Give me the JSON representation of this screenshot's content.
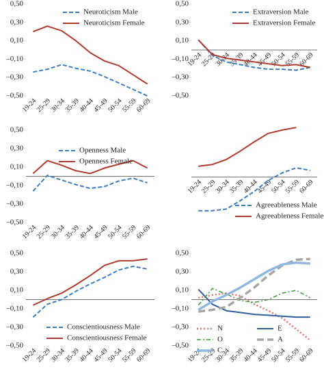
{
  "chart_data": [
    {
      "type": "line",
      "categories": [
        "19-24",
        "25-29",
        "30-34",
        "35-39",
        "40-44",
        "45-49",
        "50-54",
        "55-59",
        "60-69"
      ],
      "ylim": [
        -0.5,
        0.5
      ],
      "yticks": [
        {
          "value": -0.5,
          "label": "–0,50"
        },
        {
          "value": -0.3,
          "label": "–0,30"
        },
        {
          "value": -0.1,
          "label": "–0,10"
        },
        {
          "value": 0.1,
          "label": "0,10"
        },
        {
          "value": 0.3,
          "label": "0,30"
        },
        {
          "value": 0.5,
          "label": "0,50"
        }
      ],
      "zero_line": false,
      "legend": "top",
      "series": [
        {
          "name": "Neuroticism Male",
          "color": "#3a7dc0",
          "style": "dashed",
          "values": [
            -0.24,
            -0.21,
            -0.16,
            -0.2,
            -0.23,
            -0.29,
            -0.36,
            -0.43,
            -0.5
          ]
        },
        {
          "name": "Neuroticism Female",
          "color": "#b03a2e",
          "style": "solid",
          "values": [
            0.2,
            0.26,
            0.21,
            0.1,
            -0.03,
            -0.12,
            -0.17,
            -0.27,
            -0.37
          ]
        }
      ]
    },
    {
      "type": "line",
      "categories": [
        "19-24",
        "25-29",
        "30-34",
        "35-39",
        "40-44",
        "45-49",
        "50-54",
        "55-59",
        "60-69"
      ],
      "ylim": [
        -0.5,
        0.5
      ],
      "yticks": [
        {
          "value": -0.5,
          "label": "–0,50"
        },
        {
          "value": -0.3,
          "label": "–0,30"
        },
        {
          "value": -0.1,
          "label": "–0,10"
        },
        {
          "value": 0.1,
          "label": "0,10"
        },
        {
          "value": 0.3,
          "label": "0,30"
        },
        {
          "value": 0.5,
          "label": "0,50"
        }
      ],
      "zero_line": true,
      "legend": "top",
      "series": [
        {
          "name": "Extraversion Male",
          "color": "#3a7dc0",
          "style": "dashed",
          "values": [
            0.11,
            -0.06,
            -0.13,
            -0.16,
            -0.19,
            -0.21,
            -0.21,
            -0.22,
            -0.19
          ]
        },
        {
          "name": "Extraversion Female",
          "color": "#b03a2e",
          "style": "solid",
          "values": [
            0.11,
            -0.05,
            -0.09,
            -0.11,
            -0.13,
            -0.15,
            -0.17,
            -0.16,
            -0.19
          ]
        }
      ]
    },
    {
      "type": "line",
      "categories": [
        "19-24",
        "25-29",
        "30-34",
        "35-39",
        "40-44",
        "45-49",
        "50-54",
        "55-59",
        "60-69"
      ],
      "ylim": [
        -0.5,
        0.5
      ],
      "yticks": [
        {
          "value": -0.5,
          "label": "–0,50"
        },
        {
          "value": -0.3,
          "label": "–0,30"
        },
        {
          "value": -0.1,
          "label": "–0,10"
        },
        {
          "value": 0.1,
          "label": "0,10"
        },
        {
          "value": 0.3,
          "label": "0,30"
        },
        {
          "value": 0.5,
          "label": "0,50"
        }
      ],
      "zero_line": true,
      "legend": "top",
      "series": [
        {
          "name": "Openness Male",
          "color": "#3a7dc0",
          "style": "dashed",
          "values": [
            -0.16,
            0.01,
            -0.04,
            -0.09,
            -0.13,
            -0.11,
            -0.05,
            -0.02,
            -0.07
          ]
        },
        {
          "name": "Openness Female",
          "color": "#b03a2e",
          "style": "solid",
          "values": [
            0.03,
            0.17,
            0.12,
            0.06,
            0.03,
            0.09,
            0.13,
            0.17,
            0.09
          ]
        }
      ]
    },
    {
      "type": "line",
      "categories": [
        "19-24",
        "25-29",
        "30-34",
        "35-39",
        "40-44",
        "45-49",
        "50-54",
        "55-59",
        "60-69"
      ],
      "ylim": [
        -0.5,
        0.6
      ],
      "zero_line": true,
      "legend": "bottom",
      "series": [
        {
          "name": "Agreeableness Male",
          "color": "#3a7dc0",
          "style": "dashed",
          "values": [
            -0.4,
            -0.4,
            -0.38,
            -0.28,
            -0.17,
            -0.04,
            0.05,
            0.11,
            0.08
          ]
        },
        {
          "name": "Agreeableness Female",
          "color": "#b03a2e",
          "style": "solid",
          "values": [
            0.13,
            0.15,
            0.21,
            0.31,
            0.42,
            0.52,
            0.56,
            0.59,
            null
          ]
        }
      ]
    },
    {
      "type": "line",
      "categories": [
        "19-24",
        "25-29",
        "30-34",
        "35-39",
        "40-44",
        "45-49",
        "50-54",
        "55-59",
        "60-69"
      ],
      "ylim": [
        -0.5,
        0.5
      ],
      "yticks": [
        {
          "value": -0.5,
          "label": "–0,50"
        },
        {
          "value": -0.3,
          "label": "–0,30"
        },
        {
          "value": -0.1,
          "label": "–0,10"
        },
        {
          "value": 0.1,
          "label": "0,10"
        },
        {
          "value": 0.3,
          "label": "0,30"
        },
        {
          "value": 0.5,
          "label": "0,50"
        }
      ],
      "zero_line": true,
      "legend": "bottom",
      "series": [
        {
          "name": "Conscientiousness Male",
          "color": "#3a7dc0",
          "style": "dashed",
          "values": [
            -0.19,
            -0.05,
            0.0,
            0.09,
            0.17,
            0.24,
            0.32,
            0.36,
            0.33
          ]
        },
        {
          "name": "Conscientiousness Female",
          "color": "#b03a2e",
          "style": "solid",
          "values": [
            -0.06,
            0.01,
            0.07,
            0.16,
            0.26,
            0.37,
            0.42,
            0.42,
            0.44
          ]
        }
      ]
    },
    {
      "type": "line",
      "categories": [
        "19-24",
        "25-29",
        "30-34",
        "35-39",
        "40-44",
        "45-49",
        "50-54",
        "55-59",
        "60-69"
      ],
      "ylim": [
        -0.5,
        0.5
      ],
      "yticks": [
        {
          "value": -0.5,
          "label": "–0,50"
        },
        {
          "value": -0.3,
          "label": "–0,30"
        },
        {
          "value": -0.1,
          "label": "–0,10"
        },
        {
          "value": 0.1,
          "label": "0,10"
        },
        {
          "value": 0.3,
          "label": "0,30"
        },
        {
          "value": 0.5,
          "label": "0,50"
        }
      ],
      "zero_line": true,
      "legend": "bottom-left",
      "series": [
        {
          "name": "N",
          "color": "#e8716b",
          "style": "dotted",
          "values": [
            0.02,
            0.05,
            0.07,
            0.04,
            -0.05,
            -0.12,
            -0.2,
            -0.32,
            -0.44
          ]
        },
        {
          "name": "E",
          "color": "#2c5f9e",
          "style": "solid",
          "values": [
            0.11,
            -0.05,
            -0.12,
            -0.14,
            -0.16,
            -0.17,
            -0.18,
            -0.19,
            -0.19
          ]
        },
        {
          "name": "O",
          "color": "#3a9a3a",
          "style": "dashdot",
          "values": [
            -0.06,
            0.12,
            0.06,
            -0.01,
            -0.03,
            0.0,
            0.07,
            0.1,
            0.02
          ]
        },
        {
          "name": "A",
          "color": "#a6a6a6",
          "style": "thick-dashed",
          "values": [
            -0.13,
            -0.11,
            -0.08,
            0.02,
            0.13,
            0.26,
            0.37,
            0.43,
            0.44
          ]
        },
        {
          "name": "C",
          "color": "#8fb8de",
          "style": "thick-solid",
          "values": [
            -0.11,
            -0.02,
            0.05,
            0.13,
            0.22,
            0.31,
            0.38,
            0.4,
            0.39
          ]
        }
      ]
    }
  ]
}
